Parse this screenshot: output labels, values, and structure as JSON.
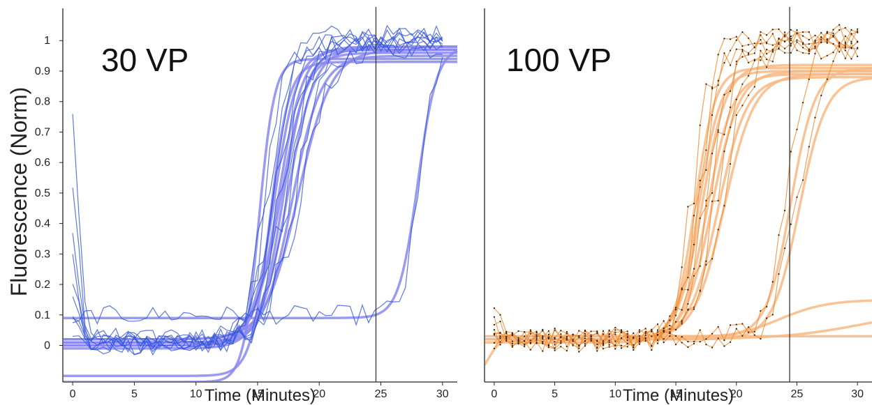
{
  "figure": {
    "ylabel": "Fluorescence (Norm)"
  },
  "chart_data": [
    {
      "type": "line",
      "title": "30 VP",
      "xlabel": "Time (Minutes)",
      "ylabel": "Fluorescence (Norm)",
      "xlim": [
        -0.8,
        31.2
      ],
      "ylim": [
        -0.12,
        1.06
      ],
      "xticks": [
        0,
        5,
        10,
        15,
        20,
        25,
        30
      ],
      "yticks": [
        0,
        0.1,
        0.2,
        0.3,
        0.4,
        0.5,
        0.6,
        0.7,
        0.8,
        0.9,
        1
      ],
      "ytick_labels": [
        "0",
        "0.1",
        "0.2",
        "0.3",
        "0.4",
        "0.5",
        "0.6",
        "0.7",
        "0.8",
        "0.9",
        "1"
      ],
      "threshold_time": 24.6,
      "colors": {
        "raw": "#3355dd",
        "fit": "#8888ee"
      },
      "grid": false,
      "legend": "none",
      "fits": [
        {
          "base": 0.01,
          "plateau": 0.97,
          "t50": 16.4,
          "k": 1.1
        },
        {
          "base": 0.0,
          "plateau": 0.98,
          "t50": 16.7,
          "k": 1.0
        },
        {
          "base": 0.02,
          "plateau": 0.96,
          "t50": 16.9,
          "k": 0.95
        },
        {
          "base": 0.01,
          "plateau": 0.97,
          "t50": 17.1,
          "k": 1.05
        },
        {
          "base": -0.01,
          "plateau": 0.98,
          "t50": 17.4,
          "k": 0.9
        },
        {
          "base": 0.0,
          "plateau": 0.95,
          "t50": 17.8,
          "k": 0.85
        },
        {
          "base": 0.02,
          "plateau": 0.97,
          "t50": 18.3,
          "k": 0.75
        },
        {
          "base": -0.1,
          "plateau": 0.93,
          "t50": 16.0,
          "k": 1.3
        },
        {
          "base": -0.12,
          "plateau": 0.94,
          "t50": 15.1,
          "k": 1.6
        },
        {
          "base": 0.09,
          "plateau": 0.98,
          "t50": 28.0,
          "k": 1.3
        }
      ],
      "raw_traces": [
        {
          "t50": 16.2,
          "k": 1.1,
          "base": 0.01,
          "plateau": 1.0,
          "start": 0.75
        },
        {
          "t50": 16.5,
          "k": 1.0,
          "base": 0.0,
          "plateau": 0.99,
          "start": 0.54
        },
        {
          "t50": 16.9,
          "k": 0.95,
          "base": 0.02,
          "plateau": 1.01,
          "start": 0.38
        },
        {
          "t50": 17.2,
          "k": 1.0,
          "base": 0.0,
          "plateau": 0.98,
          "start": 0.28
        },
        {
          "t50": 17.6,
          "k": 0.9,
          "base": 0.01,
          "plateau": 1.0,
          "start": 0.2
        },
        {
          "t50": 18.0,
          "k": 0.85,
          "base": 0.0,
          "plateau": 0.97,
          "start": 0.16
        },
        {
          "t50": 18.6,
          "k": 0.75,
          "base": 0.03,
          "plateau": 1.0,
          "start": 0.12
        },
        {
          "t50": 16.0,
          "k": 1.2,
          "base": 0.02,
          "plateau": 1.02,
          "start": 0.09
        },
        {
          "t50": 15.6,
          "k": 1.4,
          "base": 0.01,
          "plateau": 0.99,
          "start": 0.06
        },
        {
          "t50": 28.3,
          "k": 1.5,
          "base": 0.1,
          "plateau": 1.03,
          "start": 0.05
        }
      ]
    },
    {
      "type": "line",
      "title": "100 VP",
      "xlabel": "Time (Minutes)",
      "xlim": [
        -0.8,
        31.2
      ],
      "ylim": [
        -0.12,
        1.06
      ],
      "xticks": [
        0,
        5,
        10,
        15,
        20,
        25,
        30
      ],
      "threshold_time": 24.4,
      "colors": {
        "raw": "#f08a2e",
        "fit": "#f8b884",
        "dots": "#2a1a0a"
      },
      "grid": false,
      "legend": "none",
      "fits": [
        {
          "base": 0.02,
          "plateau": 0.91,
          "t50": 16.6,
          "k": 1.2
        },
        {
          "base": 0.02,
          "plateau": 0.9,
          "t50": 16.9,
          "k": 1.1
        },
        {
          "base": 0.02,
          "plateau": 0.92,
          "t50": 17.2,
          "k": 1.0
        },
        {
          "base": 0.01,
          "plateau": 0.89,
          "t50": 17.6,
          "k": 0.95
        },
        {
          "base": 0.02,
          "plateau": 0.9,
          "t50": 18.0,
          "k": 0.9
        },
        {
          "base": 0.02,
          "plateau": 0.88,
          "t50": 18.5,
          "k": 0.85
        },
        {
          "base": 0.02,
          "plateau": 0.89,
          "t50": 19.0,
          "k": 0.8
        },
        {
          "base": 0.03,
          "plateau": 0.91,
          "t50": 24.5,
          "k": 1.0
        },
        {
          "base": 0.02,
          "plateau": 0.88,
          "t50": 25.2,
          "k": 0.9
        },
        {
          "base": 0.02,
          "plateau": 0.15,
          "t50": 23.5,
          "k": 0.5
        },
        {
          "base": 0.02,
          "plateau": 0.12,
          "t50": 30.5,
          "k": 0.3
        },
        {
          "base": -0.12,
          "plateau": 0.03,
          "t50": -0.5,
          "k": 1.8
        }
      ],
      "raw_traces": [
        {
          "t50": 16.4,
          "k": 1.3,
          "base": 0.02,
          "plateau": 1.0,
          "start": 0.11
        },
        {
          "t50": 16.8,
          "k": 1.2,
          "base": 0.02,
          "plateau": 0.99,
          "start": 0.09
        },
        {
          "t50": 17.1,
          "k": 1.1,
          "base": 0.01,
          "plateau": 1.02,
          "start": 0.07
        },
        {
          "t50": 17.5,
          "k": 1.0,
          "base": 0.02,
          "plateau": 0.98,
          "start": 0.05
        },
        {
          "t50": 17.9,
          "k": 0.95,
          "base": 0.02,
          "plateau": 1.01,
          "start": 0.04
        },
        {
          "t50": 18.4,
          "k": 0.9,
          "base": 0.02,
          "plateau": 0.97,
          "start": 0.03
        },
        {
          "t50": 19.0,
          "k": 0.85,
          "base": 0.02,
          "plateau": 1.0,
          "start": 0.02
        },
        {
          "t50": 24.3,
          "k": 1.2,
          "base": 0.03,
          "plateau": 1.03,
          "start": 0.03
        },
        {
          "t50": 25.1,
          "k": 1.0,
          "base": 0.02,
          "plateau": 0.99,
          "start": 0.02
        }
      ]
    }
  ]
}
